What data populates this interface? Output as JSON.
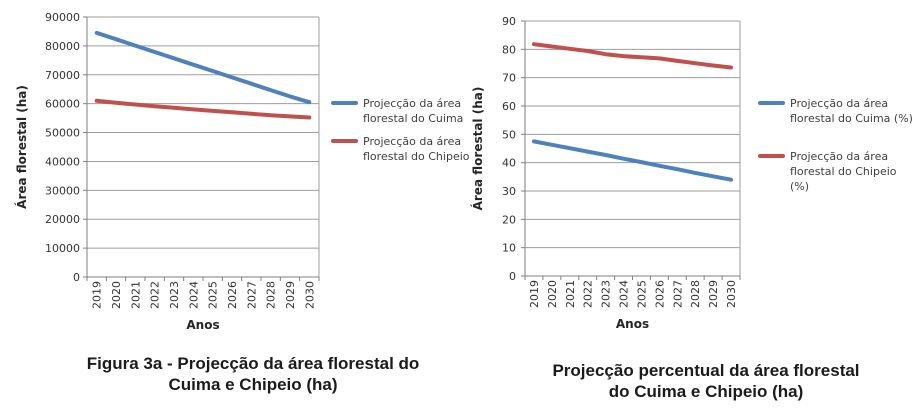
{
  "page": {
    "background": "#ffffff"
  },
  "colors": {
    "cuima_line": "#4F81BD",
    "chipeio_line": "#C0504D",
    "gridline": "#9d9d9d",
    "axis_line": "#7f7f7f",
    "tick_text": "#333333",
    "axis_title_text": "#262626",
    "legend_text": "#404040",
    "caption_text": "#1b1b1b"
  },
  "chart_data": [
    {
      "type": "line",
      "caption_lines": [
        "Figura 3a - Projecção da área florestal do",
        "Cuima e Chipeio (ha)"
      ],
      "xlabel": "Anos",
      "ylabel": "Área florestal (ha)",
      "ylim": [
        0,
        90000
      ],
      "ytick_step": 10000,
      "grid": true,
      "legend_position": "right",
      "categories": [
        "2019",
        "2020",
        "2021",
        "2022",
        "2023",
        "2024",
        "2025",
        "2026",
        "2027",
        "2028",
        "2029",
        "2030"
      ],
      "series": [
        {
          "name": "Projecção da área florestal do Cuima",
          "color_key": "cuima_line",
          "legend_lines": [
            "Projecção da área",
            "florestal do Cuima"
          ],
          "values": [
            84500,
            82300,
            80100,
            77900,
            75700,
            73500,
            71300,
            69100,
            66900,
            64700,
            62500,
            60500
          ]
        },
        {
          "name": "Projecção da área florestal do Chipeio",
          "color_key": "chipeio_line",
          "legend_lines": [
            "Projecção da área",
            "florestal do Chipeio"
          ],
          "values": [
            61000,
            60300,
            59700,
            59100,
            58600,
            58000,
            57500,
            57000,
            56500,
            56000,
            55600,
            55200
          ]
        }
      ]
    },
    {
      "type": "line",
      "caption_lines": [
        "Projecção percentual da área florestal",
        "do Cuima e Chipeio (ha)"
      ],
      "xlabel": "Anos",
      "ylabel": "Área florestal (ha)",
      "ylim": [
        0,
        90
      ],
      "ytick_step": 10,
      "grid": true,
      "legend_position": "right",
      "categories": [
        "2019",
        "2020",
        "2021",
        "2022",
        "2023",
        "2024",
        "2025",
        "2026",
        "2027",
        "2028",
        "2029",
        "2030"
      ],
      "series": [
        {
          "name": "Projecção da área florestal do Cuima (%)",
          "color_key": "cuima_line",
          "legend_lines": [
            "Projecção da área",
            "florestal do Cuima (%)"
          ],
          "values": [
            47.5,
            46.3,
            45.1,
            43.9,
            42.7,
            41.4,
            40.2,
            38.9,
            37.7,
            36.4,
            35.2,
            34.0
          ]
        },
        {
          "name": "Projecção da área florestal do Chipeio (%)",
          "color_key": "chipeio_line",
          "legend_lines": [
            "Projecção da área",
            "florestal do Chipeio",
            "(%)"
          ],
          "values": [
            81.8,
            81.0,
            80.2,
            79.4,
            78.3,
            77.6,
            77.2,
            76.8,
            75.9,
            75.1,
            74.3,
            73.6
          ]
        }
      ]
    }
  ]
}
